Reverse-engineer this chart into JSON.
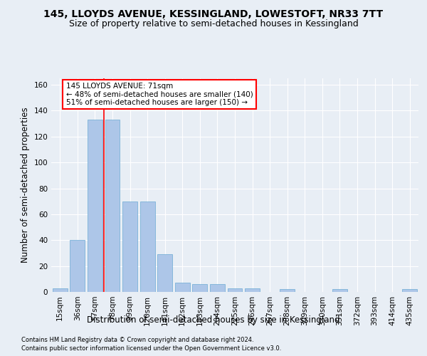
{
  "title": "145, LLOYDS AVENUE, KESSINGLAND, LOWESTOFT, NR33 7TT",
  "subtitle": "Size of property relative to semi-detached houses in Kessingland",
  "xlabel": "Distribution of semi-detached houses by size in Kessingland",
  "ylabel": "Number of semi-detached properties",
  "footer1": "Contains HM Land Registry data © Crown copyright and database right 2024.",
  "footer2": "Contains public sector information licensed under the Open Government Licence v3.0.",
  "categories": [
    "15sqm",
    "36sqm",
    "57sqm",
    "78sqm",
    "99sqm",
    "120sqm",
    "141sqm",
    "162sqm",
    "183sqm",
    "204sqm",
    "225sqm",
    "246sqm",
    "267sqm",
    "288sqm",
    "309sqm",
    "330sqm",
    "351sqm",
    "372sqm",
    "393sqm",
    "414sqm",
    "435sqm"
  ],
  "values": [
    3,
    40,
    133,
    133,
    70,
    70,
    29,
    7,
    6,
    6,
    3,
    3,
    0,
    2,
    0,
    0,
    2,
    0,
    0,
    0,
    2
  ],
  "bar_color": "#adc6e8",
  "bar_edgecolor": "#6aaad4",
  "red_line_x": 2.5,
  "annotation_text_line1": "145 LLOYDS AVENUE: 71sqm",
  "annotation_text_line2": "← 48% of semi-detached houses are smaller (140)",
  "annotation_text_line3": "51% of semi-detached houses are larger (150) →",
  "ylim": [
    0,
    165
  ],
  "yticks": [
    0,
    20,
    40,
    60,
    80,
    100,
    120,
    140,
    160
  ],
  "bg_color": "#e8eef5",
  "plot_bg_color": "#e8eef5",
  "grid_color": "#ffffff",
  "title_fontsize": 10,
  "subtitle_fontsize": 9,
  "axis_label_fontsize": 8.5,
  "tick_fontsize": 7.5,
  "footer_fontsize": 6
}
